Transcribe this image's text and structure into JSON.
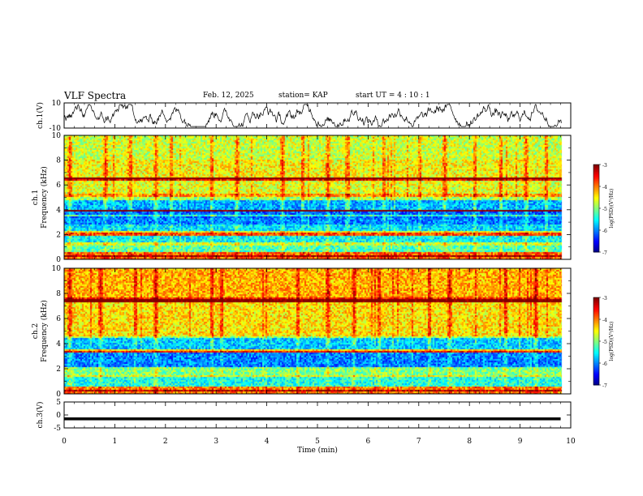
{
  "header": {
    "title": "VLF Spectra",
    "date": "Feb. 12, 2025",
    "station": "station= KAP",
    "start_ut": "start  UT  =   4  : 10 : 1"
  },
  "chart_data": [
    {
      "type": "line",
      "panel": "ch1-waveform",
      "ylabel": "ch.1(V)",
      "ylim": [
        -10,
        10
      ],
      "yticks": [
        "10",
        "-10"
      ],
      "xlim": [
        0,
        10
      ],
      "note_series": "noisy waveform between approx -9 and 9 V, data ends near 9.8 min"
    },
    {
      "type": "heatmap",
      "panel": "ch1-spectrogram",
      "ylabel_line1": "ch.1",
      "ylabel_line2": "Frequency  (kHz)",
      "ylim": [
        0,
        10
      ],
      "yticks": [
        "0",
        "2",
        "4",
        "6",
        "8",
        "10"
      ],
      "xlim": [
        0,
        10
      ],
      "colorbar": {
        "label": "log(PSD)(V²/Hz)",
        "range": [
          -7,
          -3
        ],
        "ticks": [
          "-3",
          "-4",
          "-5",
          "-6",
          "-7"
        ]
      },
      "bands_kHz": [
        {
          "from": 0.0,
          "to": 0.6,
          "level": -3.9
        },
        {
          "from": 0.6,
          "to": 1.2,
          "level": -5.2
        },
        {
          "from": 1.2,
          "to": 2.0,
          "level": -5.5
        },
        {
          "from": 2.0,
          "to": 2.3,
          "level": -4.6
        },
        {
          "from": 2.3,
          "to": 2.9,
          "level": -5.6
        },
        {
          "from": 2.9,
          "to": 3.4,
          "level": -6.0
        },
        {
          "from": 3.4,
          "to": 3.9,
          "level": -6.1
        },
        {
          "from": 3.9,
          "to": 4.1,
          "level": -3.6
        },
        {
          "from": 4.1,
          "to": 4.9,
          "level": -5.8
        },
        {
          "from": 4.9,
          "to": 5.3,
          "level": -4.9
        },
        {
          "from": 5.3,
          "to": 6.4,
          "level": -4.6
        },
        {
          "from": 6.4,
          "to": 6.7,
          "level": -3.5
        },
        {
          "from": 6.7,
          "to": 8.1,
          "level": -4.5
        },
        {
          "from": 8.1,
          "to": 10.0,
          "level": -4.7
        }
      ],
      "lines_kHz": [
        0.3,
        1.3,
        2.1,
        3.6,
        4.0,
        5.2,
        6.6
      ],
      "bursts_min": [
        0.1,
        0.8,
        1.3,
        1.8,
        2.1,
        2.9,
        3.4,
        4.3,
        4.7,
        5.2,
        5.6,
        6.3,
        7.0,
        7.5,
        8.1,
        8.6,
        9.1,
        9.5
      ]
    },
    {
      "type": "heatmap",
      "panel": "ch2-spectrogram",
      "ylabel_line1": "ch.2",
      "ylabel_line2": "Frequency  (kHz)",
      "ylim": [
        0,
        10
      ],
      "yticks": [
        "0",
        "2",
        "4",
        "6",
        "8",
        "10"
      ],
      "xlim": [
        0,
        10
      ],
      "colorbar": {
        "label": "log(PSD)(V²/Hz)",
        "range": [
          -7,
          -3
        ],
        "ticks": [
          "-3",
          "-4",
          "-5",
          "-6",
          "-7"
        ]
      },
      "bands_kHz": [
        {
          "from": 0.0,
          "to": 0.6,
          "level": -4.0
        },
        {
          "from": 0.6,
          "to": 1.5,
          "level": -5.4
        },
        {
          "from": 1.5,
          "to": 2.2,
          "level": -5.0
        },
        {
          "from": 2.2,
          "to": 3.3,
          "level": -6.0
        },
        {
          "from": 3.3,
          "to": 3.6,
          "level": -4.4
        },
        {
          "from": 3.6,
          "to": 4.6,
          "level": -5.7
        },
        {
          "from": 4.6,
          "to": 7.3,
          "level": -4.4
        },
        {
          "from": 7.3,
          "to": 7.7,
          "level": -3.6
        },
        {
          "from": 7.7,
          "to": 10.0,
          "level": -4.2
        }
      ],
      "lines_kHz": [
        0.3,
        1.5,
        3.4,
        4.6,
        7.5
      ],
      "bursts_min": [
        0.1,
        0.7,
        1.4,
        1.8,
        2.9,
        3.1,
        4.6,
        5.2,
        5.7,
        6.2,
        7.2,
        7.6,
        8.7,
        9.3
      ]
    },
    {
      "type": "line",
      "panel": "ch3-waveform",
      "ylabel": "ch.3(V)",
      "ylim": [
        -5,
        5
      ],
      "yticks": [
        "5",
        "0",
        "-5"
      ],
      "xlim": [
        0,
        10
      ],
      "xlabel": "Time  (min)",
      "xticks": [
        "0",
        "1",
        "2",
        "3",
        "4",
        "5",
        "6",
        "7",
        "8",
        "9",
        "10"
      ],
      "trace": {
        "center": -1.5,
        "half_width": 0.55,
        "x_end": 9.8
      }
    }
  ]
}
